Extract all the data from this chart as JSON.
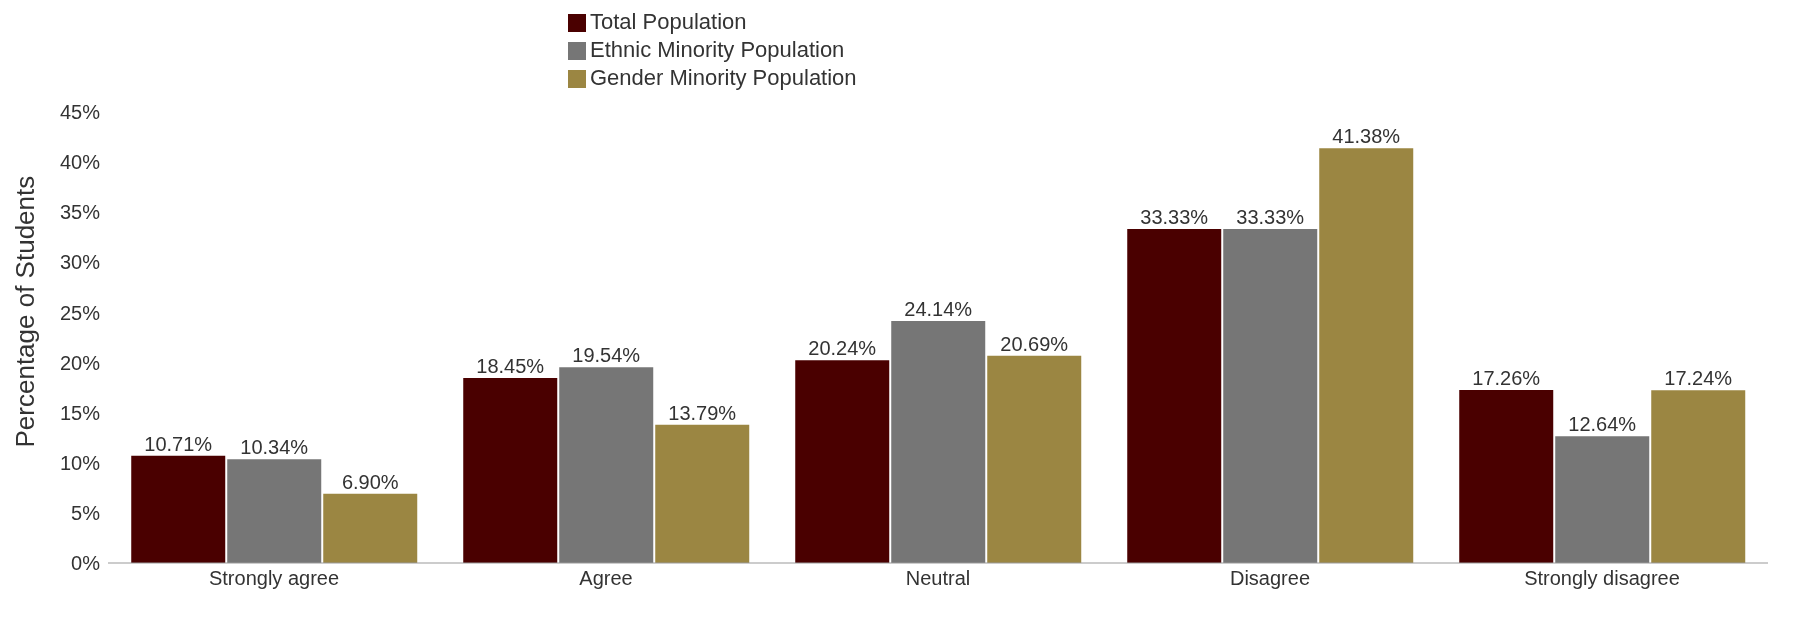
{
  "chart_data": {
    "type": "bar",
    "ylabel": "Percentage of Students",
    "categories": [
      "Strongly agree",
      "Agree",
      "Neutral",
      "Disagree",
      "Strongly disagree"
    ],
    "series": [
      {
        "name": "Total Population",
        "color": "#4a0000",
        "values": [
          10.71,
          18.45,
          20.24,
          33.33,
          17.26
        ],
        "value_labels": [
          "10.71%",
          "18.45%",
          "20.24%",
          "33.33%",
          "17.26%"
        ]
      },
      {
        "name": "Ethnic Minority Population",
        "color": "#767676",
        "values": [
          10.34,
          19.54,
          24.14,
          33.33,
          12.64
        ],
        "value_labels": [
          "10.34%",
          "19.54%",
          "24.14%",
          "33.33%",
          "12.64%"
        ]
      },
      {
        "name": "Gender Minority Population",
        "color": "#9b8642",
        "values": [
          6.9,
          13.79,
          20.69,
          41.38,
          17.24
        ],
        "value_labels": [
          "6.90%",
          "13.79%",
          "20.69%",
          "41.38%",
          "17.24%"
        ]
      }
    ],
    "ylim": [
      0,
      45
    ],
    "yticks": [
      {
        "value": 0,
        "label": "0%"
      },
      {
        "value": 5,
        "label": "5%"
      },
      {
        "value": 10,
        "label": "10%"
      },
      {
        "value": 15,
        "label": "15%"
      },
      {
        "value": 20,
        "label": "20%"
      },
      {
        "value": 25,
        "label": "25%"
      },
      {
        "value": 30,
        "label": "30%"
      },
      {
        "value": 35,
        "label": "35%"
      },
      {
        "value": 40,
        "label": "40%"
      },
      {
        "value": 45,
        "label": "45%"
      }
    ],
    "grid": false,
    "legend": "top"
  }
}
